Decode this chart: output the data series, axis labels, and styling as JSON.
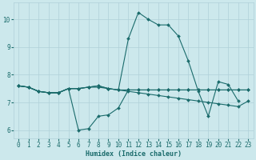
{
  "xlabel": "Humidex (Indice chaleur)",
  "background_color": "#cce8ec",
  "grid_color": "#b0d0d8",
  "line_color": "#1a6b6b",
  "xlim": [
    -0.5,
    23.5
  ],
  "ylim": [
    5.7,
    10.6
  ],
  "yticks": [
    6,
    7,
    8,
    9,
    10
  ],
  "xticks": [
    0,
    1,
    2,
    3,
    4,
    5,
    6,
    7,
    8,
    9,
    10,
    11,
    12,
    13,
    14,
    15,
    16,
    17,
    18,
    19,
    20,
    21,
    22,
    23
  ],
  "series": [
    [
      7.6,
      7.55,
      7.4,
      7.35,
      7.35,
      7.5,
      7.5,
      7.55,
      7.6,
      7.5,
      7.45,
      9.3,
      10.25,
      10.0,
      9.8,
      9.8,
      9.4,
      8.5,
      7.4,
      6.5,
      7.75,
      7.65,
      7.05,
      null
    ],
    [
      7.6,
      7.55,
      7.4,
      7.35,
      7.35,
      7.5,
      7.5,
      7.55,
      7.6,
      7.5,
      7.45,
      7.4,
      7.35,
      7.3,
      7.25,
      7.2,
      7.15,
      7.1,
      7.05,
      7.0,
      6.95,
      6.9,
      6.85,
      7.05
    ],
    [
      7.6,
      7.55,
      7.4,
      7.35,
      7.35,
      7.5,
      6.0,
      6.05,
      6.5,
      6.55,
      6.8,
      7.45,
      7.45,
      7.45,
      7.45,
      7.45,
      7.45,
      7.45,
      7.45,
      7.45,
      7.45,
      7.45,
      7.45,
      7.45
    ],
    [
      7.6,
      7.55,
      7.4,
      7.35,
      7.35,
      7.5,
      7.5,
      7.55,
      7.55,
      7.5,
      7.45,
      7.45,
      7.45,
      7.45,
      7.45,
      7.45,
      7.45,
      7.45,
      7.45,
      7.45,
      7.45,
      7.45,
      7.45,
      7.45
    ]
  ],
  "marker": "D",
  "markersize": 2.0,
  "linewidth": 0.8
}
